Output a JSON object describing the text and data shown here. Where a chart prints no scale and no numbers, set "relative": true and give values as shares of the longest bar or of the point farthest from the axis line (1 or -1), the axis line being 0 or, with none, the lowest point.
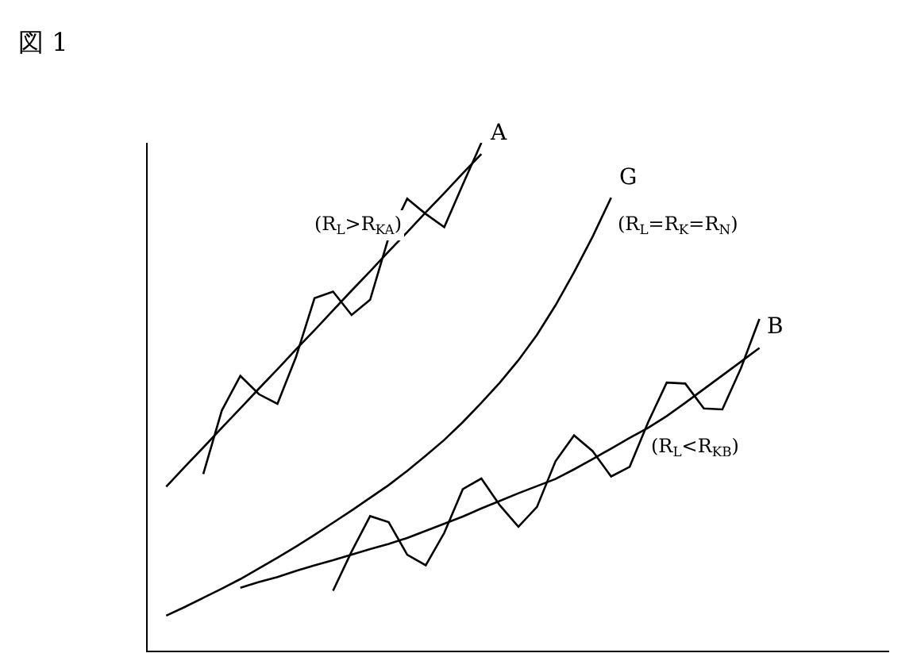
{
  "chart_data": {
    "type": "line",
    "title": "図 1",
    "relative": true,
    "legend": false,
    "marker": "none",
    "line_style": "solid",
    "categories": [
      null,
      null,
      null,
      null,
      null,
      null,
      null,
      null,
      null,
      null,
      null,
      null,
      null,
      null,
      null,
      null,
      null,
      null,
      null,
      null,
      null,
      null,
      null,
      null,
      null,
      null,
      null,
      null,
      null,
      null,
      null,
      null,
      null,
      null,
      null,
      null,
      null,
      null,
      null,
      null,
      null
    ],
    "series": [
      {
        "name": "A",
        "color": "#000000",
        "values": [
          null,
          0.323,
          0.362,
          0.4,
          0.439,
          0.477,
          0.516,
          0.554,
          0.593,
          0.631,
          0.67,
          0.709,
          0.747,
          0.786,
          0.824,
          0.863,
          0.901,
          0.94,
          0.978,
          null,
          null,
          null,
          null,
          null,
          null,
          null,
          null,
          null,
          null,
          null,
          null,
          null,
          null,
          null,
          null,
          null,
          null,
          null,
          null,
          null,
          null
        ]
      },
      {
        "color": "#000000",
        "values": [
          null,
          null,
          null,
          0.348,
          0.473,
          0.541,
          0.505,
          0.486,
          0.578,
          0.694,
          0.707,
          0.661,
          0.691,
          0.814,
          0.89,
          0.86,
          0.834,
          0.918,
          1.0,
          null,
          null,
          null,
          null,
          null,
          null,
          null,
          null,
          null,
          null,
          null,
          null,
          null,
          null,
          null,
          null,
          null,
          null,
          null,
          null,
          null,
          null
        ]
      },
      {
        "name": "G",
        "color": "#000000",
        "values": [
          null,
          0.069,
          0.086,
          0.104,
          0.122,
          0.141,
          0.162,
          0.183,
          0.205,
          0.228,
          0.252,
          0.276,
          0.301,
          0.326,
          0.354,
          0.384,
          0.415,
          0.45,
          0.488,
          0.528,
          0.572,
          0.622,
          0.68,
          0.745,
          0.815,
          0.892,
          null,
          null,
          null,
          null,
          null,
          null,
          null,
          null,
          null,
          null,
          null,
          null,
          null,
          null,
          null
        ]
      },
      {
        "name": "B",
        "color": "#000000",
        "values": [
          null,
          null,
          null,
          null,
          null,
          0.124,
          0.135,
          0.145,
          0.157,
          0.168,
          0.178,
          0.189,
          0.2,
          0.21,
          0.222,
          0.236,
          0.25,
          0.264,
          0.28,
          0.295,
          0.31,
          0.324,
          0.338,
          0.357,
          0.377,
          0.398,
          0.419,
          0.439,
          0.462,
          0.488,
          0.515,
          0.542,
          0.569,
          0.596,
          null,
          null,
          null,
          null,
          null,
          null,
          null
        ]
      },
      {
        "color": "#000000",
        "values": [
          null,
          null,
          null,
          null,
          null,
          null,
          null,
          null,
          null,
          null,
          0.118,
          0.195,
          0.265,
          0.253,
          0.189,
          0.168,
          0.232,
          0.318,
          0.339,
          0.286,
          0.244,
          0.283,
          0.373,
          0.424,
          0.393,
          0.343,
          0.362,
          0.45,
          0.528,
          0.526,
          0.477,
          0.475,
          0.556,
          0.653,
          null,
          null,
          null,
          null,
          null,
          null,
          null
        ]
      }
    ],
    "annotations": [
      "(R$_{L}$>R$_{KA}$)",
      "(R$_{L}$=R$_{K}$=R$_{N}$)",
      "(R$_{L}$<R$_{KB}$)"
    ]
  }
}
